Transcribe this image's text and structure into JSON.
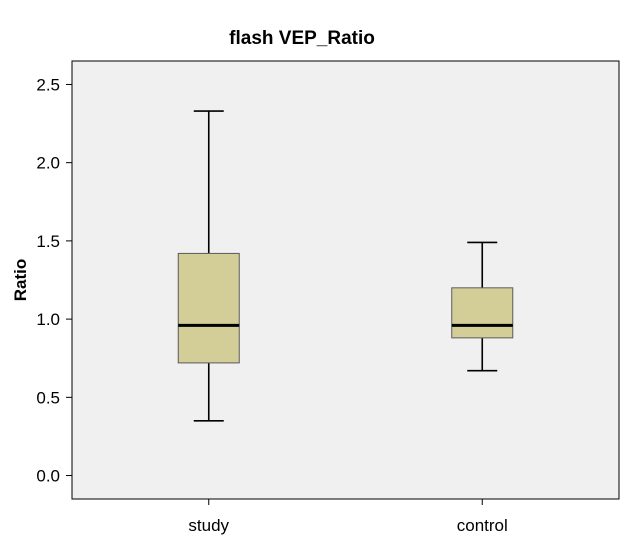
{
  "chart_data": {
    "type": "boxplot",
    "title": "flash VEP_Ratio",
    "xlabel": "",
    "ylabel": "Ratio",
    "ylim": [
      -0.15,
      2.65
    ],
    "yticks": [
      "0.0",
      "0.5",
      "1.0",
      "1.5",
      "2.0",
      "2.5"
    ],
    "ytick_values": [
      0.0,
      0.5,
      1.0,
      1.5,
      2.0,
      2.5
    ],
    "categories": [
      "study",
      "control"
    ],
    "boxes": [
      {
        "category": "study",
        "whisker_low": 0.35,
        "q1": 0.72,
        "median": 0.96,
        "q3": 1.42,
        "whisker_high": 2.33
      },
      {
        "category": "control",
        "whisker_low": 0.67,
        "q1": 0.88,
        "median": 0.96,
        "q3": 1.2,
        "whisker_high": 1.49
      }
    ],
    "grid": false,
    "legend": "none",
    "colors": {
      "plot_background": "#f0f0f0",
      "box_fill": "#d3ce97",
      "box_stroke": "#5a5a5a",
      "line": "#000000"
    }
  }
}
